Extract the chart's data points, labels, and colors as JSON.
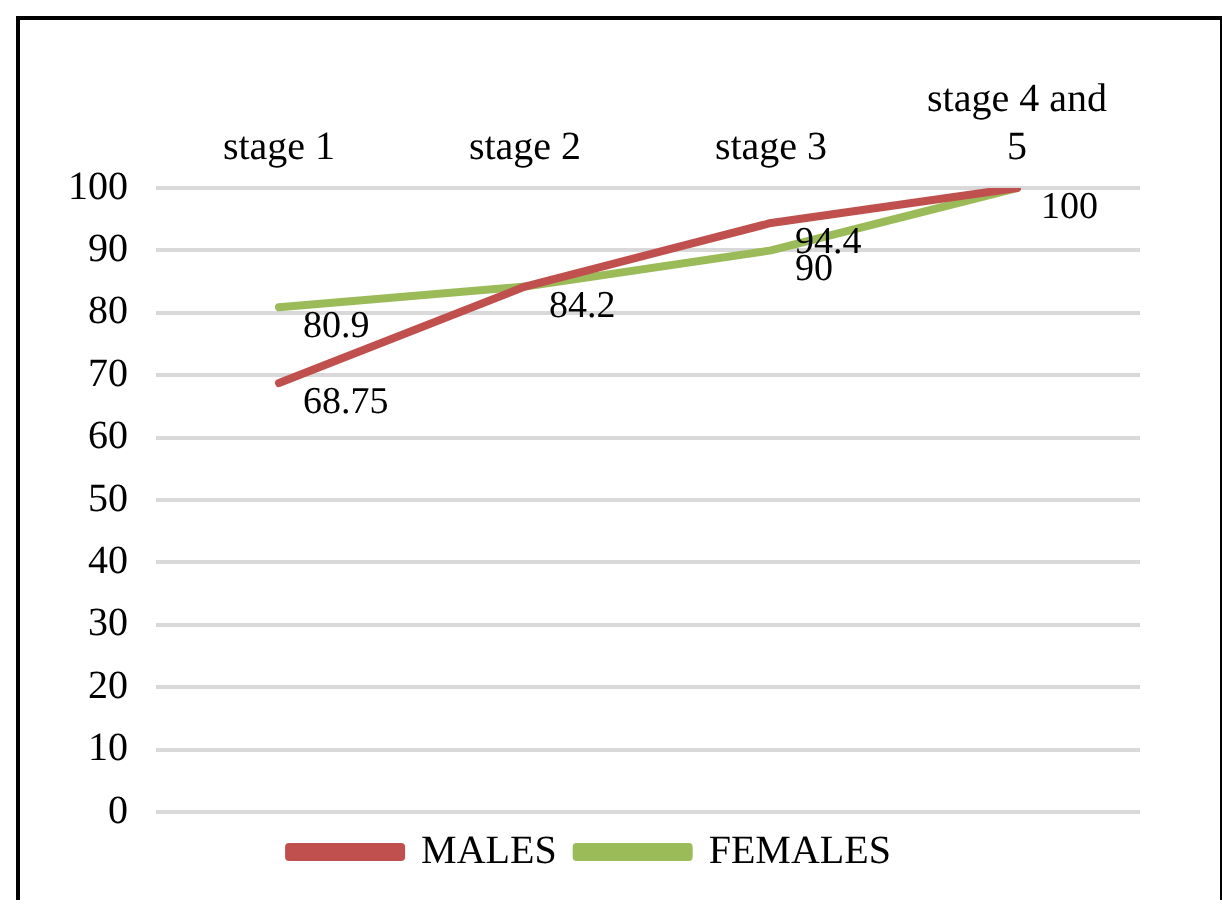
{
  "chart_data": {
    "type": "line",
    "categories": [
      "stage 1",
      "stage 2",
      "stage 3",
      "stage 4 and 5"
    ],
    "series": [
      {
        "name": "MALES",
        "color": "#c0504d",
        "values": [
          68.75,
          84.2,
          94.4,
          100
        ],
        "value_labels": [
          "68.75",
          "84.2",
          "94.4",
          "100"
        ]
      },
      {
        "name": "FEMALES",
        "color": "#9bbb59",
        "values": [
          80.9,
          84.2,
          90,
          100
        ],
        "value_labels": [
          "80.9",
          null,
          "90",
          null
        ]
      }
    ],
    "ylim": [
      0,
      100
    ],
    "yticks": [
      0,
      10,
      20,
      30,
      40,
      50,
      60,
      70,
      80,
      90,
      100
    ],
    "grid": "y",
    "legend": "bottom",
    "marker": "none",
    "line_style": "solid"
  }
}
